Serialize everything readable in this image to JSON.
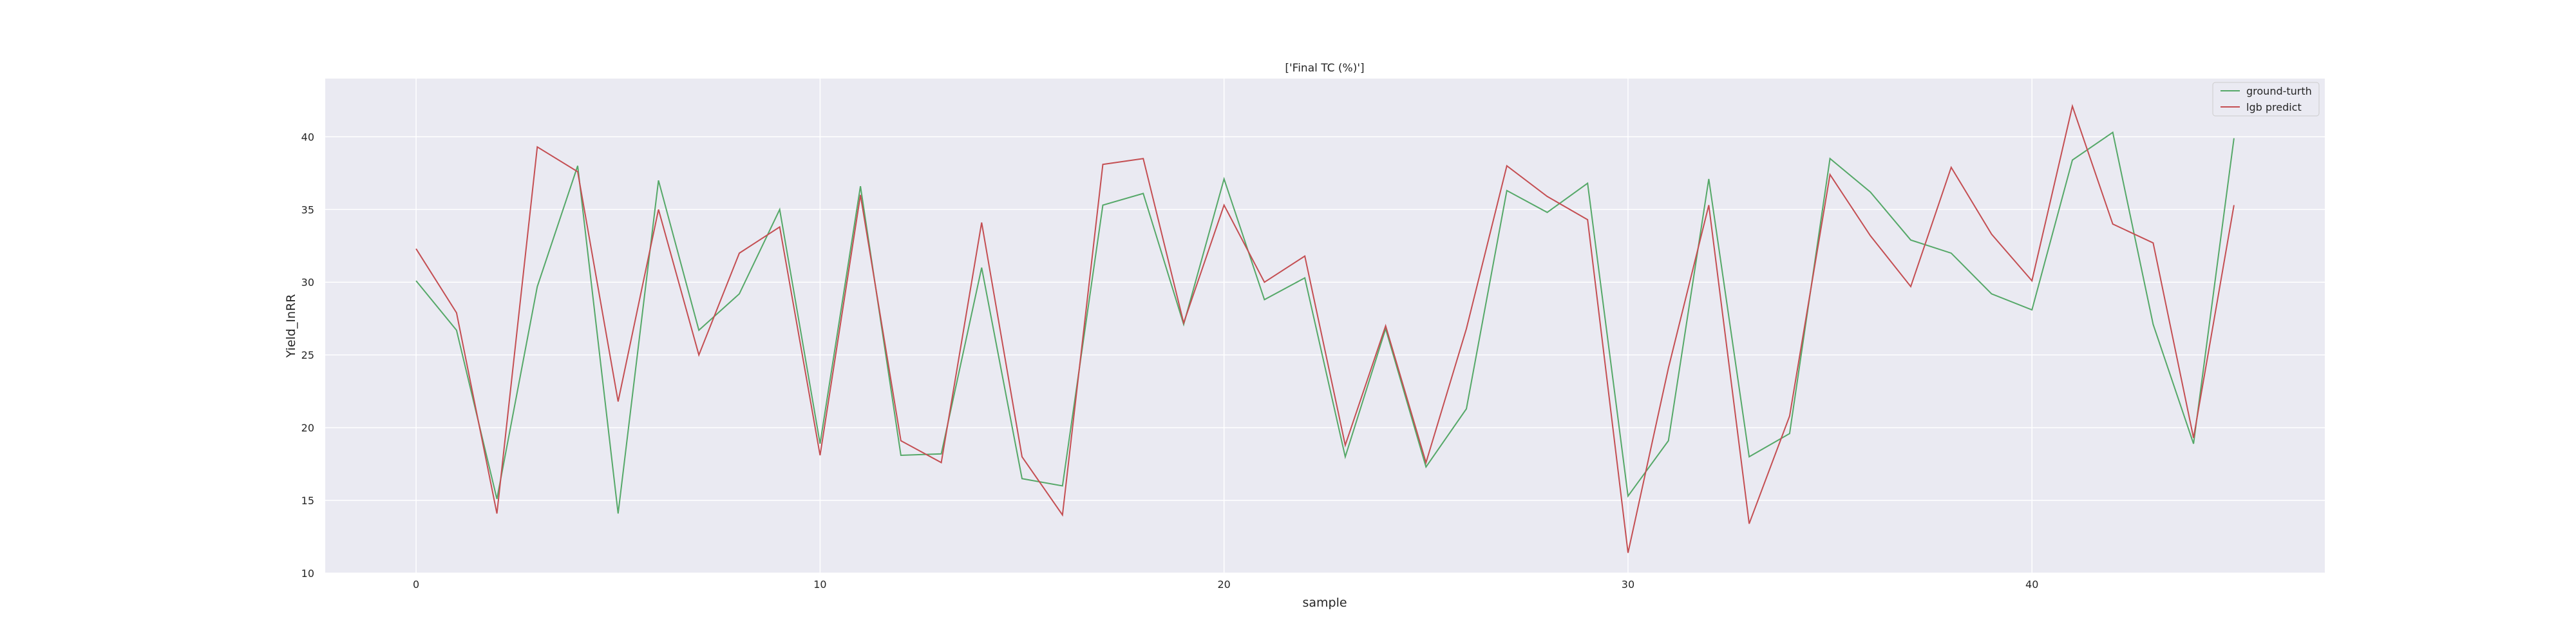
{
  "chart_data": {
    "type": "line",
    "title": "['Final TC (%)']",
    "xlabel": "sample",
    "ylabel": "Yield_InRR",
    "xlim": [
      -2.25,
      47.25
    ],
    "ylim": [
      10,
      44
    ],
    "xticks": [
      0,
      10,
      20,
      30,
      40
    ],
    "yticks": [
      10,
      15,
      20,
      25,
      30,
      35,
      40
    ],
    "grid": true,
    "legend_position": "top-right",
    "x": [
      0,
      1,
      2,
      3,
      4,
      5,
      6,
      7,
      8,
      9,
      10,
      11,
      12,
      13,
      14,
      15,
      16,
      17,
      18,
      19,
      20,
      21,
      22,
      23,
      24,
      25,
      26,
      27,
      28,
      29,
      30,
      31,
      32,
      33,
      34,
      35,
      36,
      37,
      38,
      39,
      40,
      41,
      42,
      43,
      44,
      45
    ],
    "series": [
      {
        "name": "ground-turth",
        "color": "#55a868",
        "values": [
          30.1,
          26.7,
          15.1,
          29.7,
          38.0,
          14.1,
          37.0,
          26.7,
          29.2,
          35.0,
          18.9,
          36.6,
          18.1,
          18.2,
          31.0,
          16.5,
          16.0,
          35.3,
          36.1,
          27.1,
          37.1,
          28.8,
          30.3,
          18.0,
          26.8,
          17.3,
          21.3,
          36.3,
          34.8,
          36.8,
          15.3,
          19.1,
          37.1,
          18.0,
          19.6,
          38.5,
          36.2,
          32.9,
          32.0,
          29.2,
          28.1,
          38.4,
          40.3,
          27.1,
          18.9,
          39.9
        ]
      },
      {
        "name": "lgb predict",
        "color": "#c44e52",
        "values": [
          32.3,
          27.9,
          14.1,
          39.3,
          37.6,
          21.8,
          35.0,
          25.0,
          32.0,
          33.8,
          18.1,
          36.0,
          19.1,
          17.6,
          34.1,
          18.0,
          14.0,
          38.1,
          38.5,
          27.2,
          35.3,
          30.0,
          31.8,
          18.8,
          27.0,
          17.6,
          26.8,
          38.0,
          35.9,
          34.3,
          11.4,
          24.1,
          35.3,
          13.4,
          20.8,
          37.4,
          33.2,
          29.7,
          37.9,
          33.3,
          30.1,
          42.1,
          34.0,
          32.7,
          19.3,
          35.3
        ]
      }
    ]
  }
}
